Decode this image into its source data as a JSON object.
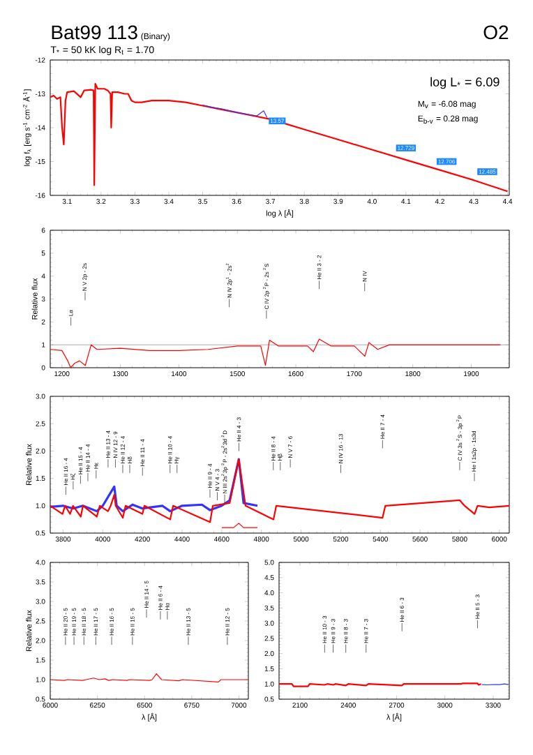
{
  "chart_data": [
    {
      "type": "line",
      "title": "Bat99 113",
      "subtitle": "T$_{*}$ =  50 kK   log R$_{t}$ = 1.70",
      "xlabel": "log λ [Å]",
      "ylabel": "log f$_{λ}$ [erg s$^{-1}$ cm$^{-2}$ Å$^{-1}$]",
      "annotations": [
        "(Binary)",
        "O2",
        "log L$_{*}$ = 6.09",
        "M$_{v}$ = -6.08 mag",
        "E$_{b-v}$ = 0.28 mag",
        {
          "text": "13.57",
          "x": 3.72,
          "y": -13.8
        },
        {
          "text": "12.729",
          "x": 4.1,
          "y": -14.6
        },
        {
          "text": "12.706",
          "x": 4.22,
          "y": -15.0
        },
        {
          "text": "12.485",
          "x": 4.34,
          "y": -15.3
        }
      ],
      "xlim": [
        3.05,
        4.405
      ],
      "ylim": [
        -16,
        -12
      ],
      "xticks": [
        3.1,
        3.2,
        3.3,
        3.4,
        3.5,
        3.6,
        3.7,
        3.8,
        3.9,
        {
          "value": 4,
          "label": "4.0"
        },
        4.1,
        4.2,
        4.3,
        4.4
      ],
      "yticks": [
        -16,
        -15,
        -14,
        -13,
        -12
      ],
      "series": [
        {
          "color": "#ff0000",
          "x": [
            3.05,
            3.06,
            3.07,
            3.08,
            3.085,
            3.09,
            3.095,
            3.1,
            3.12,
            3.14,
            3.15,
            3.17,
            3.178,
            3.18,
            3.183,
            3.19,
            3.21,
            3.22,
            3.228,
            3.23,
            3.233,
            3.25,
            3.27,
            3.28,
            3.29,
            3.3,
            3.32,
            3.35,
            3.4,
            3.45,
            3.5,
            3.55,
            3.6,
            3.65,
            3.7,
            3.75,
            3.8,
            3.85,
            3.9,
            4.0,
            4.1,
            4.2,
            4.3,
            4.4
          ],
          "values": [
            -13.1,
            -13.05,
            -13.15,
            -13.1,
            -14.0,
            -14.5,
            -13.2,
            -12.95,
            -12.92,
            -13.1,
            -12.9,
            -12.88,
            -12.9,
            -15.7,
            -12.7,
            -12.85,
            -12.85,
            -12.9,
            -13.0,
            -14.0,
            -12.95,
            -12.95,
            -13.0,
            -13.0,
            -13.2,
            -13.25,
            -13.25,
            -13.2,
            -13.2,
            -13.25,
            -13.35,
            -13.45,
            -13.55,
            -13.65,
            -13.75,
            -13.9,
            -14.05,
            -14.2,
            -14.35,
            -14.65,
            -14.95,
            -15.25,
            -15.55,
            -15.88
          ]
        },
        {
          "color": "#3333ff",
          "x": [
            3.5,
            3.53,
            3.56,
            3.6,
            3.63,
            3.66,
            3.68,
            3.69
          ],
          "values": [
            -13.33,
            -13.4,
            -13.45,
            -13.55,
            -13.6,
            -13.65,
            -13.5,
            -13.7
          ]
        }
      ]
    },
    {
      "type": "line",
      "ylabel": "Relative flux",
      "xlim": [
        1180,
        1965
      ],
      "ylim": [
        0,
        6
      ],
      "xticks": [
        1200,
        1300,
        1400,
        1500,
        1600,
        1700,
        1800,
        1900
      ],
      "yticks": [
        0,
        1,
        2,
        3,
        4,
        5,
        6
      ],
      "ref_lines": [
        {
          "axis": "y",
          "value": 1,
          "color": "#888888"
        }
      ],
      "annotations": [
        "Lα",
        "N V 2p - 2s",
        "N IV 2p$^{1}$ - 2s$^{2}$",
        "C IV 2p $^{2}$P - 2s $^{2}$S",
        "He II 3 - 2",
        "N IV"
      ],
      "series": [
        {
          "color": "#ff0000",
          "x": [
            1180,
            1200,
            1210,
            1215,
            1222,
            1230,
            1240,
            1250,
            1260,
            1300,
            1350,
            1400,
            1450,
            1500,
            1540,
            1548,
            1555,
            1570,
            1620,
            1630,
            1640,
            1660,
            1700,
            1718,
            1725,
            1740,
            1760,
            1950
          ],
          "values": [
            0.8,
            0.75,
            0.3,
            0.0,
            0.2,
            0.3,
            0.1,
            1.0,
            0.8,
            0.85,
            0.75,
            0.75,
            0.8,
            0.95,
            0.95,
            0.1,
            1.2,
            0.95,
            0.95,
            0.7,
            1.25,
            0.95,
            0.95,
            0.5,
            1.1,
            0.8,
            1.0,
            1.0
          ]
        }
      ]
    },
    {
      "type": "line",
      "ylabel": "Relative flux",
      "xlim": [
        3735,
        6050
      ],
      "ylim": [
        0.5,
        3.0
      ],
      "xticks": [
        3800,
        4000,
        4200,
        4400,
        4600,
        4800,
        5000,
        5200,
        5400,
        5600,
        5800,
        6000
      ],
      "yticks": [
        {
          "value": 0.5,
          "label": "0.5"
        },
        {
          "value": 1,
          "label": "1.0"
        },
        {
          "value": 1.5,
          "label": "1.5"
        },
        {
          "value": 2,
          "label": "2.0"
        },
        {
          "value": 2.5,
          "label": "2.5"
        },
        {
          "value": 3,
          "label": "3.0"
        }
      ],
      "annotations": [
        "He II 16 - 4",
        "Hζ",
        "He II 15 - 4",
        "He II 14 - 4",
        "Hε",
        "He II 13 - 4",
        "N IV 12 - 9",
        "He II 12 - 4",
        "Hδ",
        "He II 11 - 4",
        "He II 10 - 4",
        "Hγ",
        "He II 9 - 4",
        "N V 4 - 3",
        "N III 2s$^{2}$3p $^{2}$P - 2s$^{2}$3d $^{2}$D",
        "He II 4 - 3",
        "He II 8 - 4",
        "Hβ",
        "N V 7 - 6",
        "N IV 16 - 13",
        "He II 7 - 4",
        "C IV 3s $^{2}$S - 3p $^{2}$P",
        "He I 1s2p - 1s3d"
      ],
      "series": [
        {
          "color": "#3333ff",
          "x": [
            3735,
            3800,
            3850,
            3900,
            3970,
            4000,
            4058,
            4070,
            4101,
            4150,
            4200,
            4300,
            4340,
            4400,
            4500,
            4541,
            4600,
            4640,
            4686,
            4710,
            4780
          ],
          "values": [
            0.98,
            1.0,
            0.95,
            1.0,
            0.9,
            1.0,
            1.35,
            1.0,
            0.9,
            1.02,
            0.95,
            1.0,
            0.9,
            1.0,
            1.02,
            0.92,
            1.0,
            1.1,
            1.85,
            1.05,
            1.0
          ]
        },
        {
          "color": "#ff0000",
          "x": [
            3735,
            3797,
            3810,
            3835,
            3850,
            3889,
            3900,
            3970,
            3985,
            4026,
            4040,
            4058,
            4065,
            4101,
            4115,
            4200,
            4210,
            4340,
            4355,
            4541,
            4555,
            4640,
            4686,
            4720,
            4861,
            4875,
            5411,
            5425,
            5801,
            5812,
            5825,
            5875,
            5890,
            5950,
            6050
          ],
          "values": [
            1.0,
            0.85,
            1.0,
            0.85,
            1.0,
            0.8,
            1.0,
            0.8,
            1.0,
            0.9,
            1.0,
            1.2,
            1.0,
            0.78,
            1.0,
            0.85,
            1.0,
            0.75,
            1.0,
            0.7,
            1.0,
            1.05,
            1.85,
            1.0,
            0.75,
            1.0,
            0.78,
            1.0,
            1.1,
            1.05,
            1.0,
            0.85,
            1.0,
            0.97,
            1.0
          ]
        },
        {
          "color": "#ff0000",
          "x": [
            4600,
            4660,
            4686,
            4710,
            4780
          ],
          "values": [
            0.6,
            0.6,
            0.68,
            0.6,
            0.6
          ]
        }
      ]
    },
    {
      "type": "line",
      "ylabel": "Relative flux",
      "xlabel": "λ [Å]",
      "xlim": [
        6000,
        7050
      ],
      "ylim": [
        0.5,
        4.0
      ],
      "xticks": [
        6000,
        6250,
        6500,
        6750,
        7000
      ],
      "yticks": [
        {
          "value": 0.5,
          "label": "0.5"
        },
        {
          "value": 1,
          "label": "1.0"
        },
        {
          "value": 1.5,
          "label": "1.5"
        },
        {
          "value": 2,
          "label": "2.0"
        },
        {
          "value": 2.5,
          "label": "2.5"
        },
        {
          "value": 3,
          "label": "3.0"
        },
        {
          "value": 3.5,
          "label": "3.5"
        },
        {
          "value": 4,
          "label": "4.0"
        }
      ],
      "annotations": [
        "He II 20 - 5",
        "He II 19 - 5",
        "He II 18 - 5",
        "He II 17 - 5",
        "He II 16 - 5",
        "He II 15 - 5",
        "He II 14 - 5",
        "He II 6 - 4",
        "Hα",
        "He II 13 - 5",
        "He II 12 - 5"
      ],
      "series": [
        {
          "color": "#ff0000",
          "x": [
            6000,
            6074,
            6090,
            6171,
            6190,
            6230,
            6260,
            6290,
            6311,
            6330,
            6407,
            6420,
            6527,
            6540,
            6563,
            6590,
            6683,
            6700,
            6891,
            6905,
            7050
          ],
          "values": [
            1.0,
            0.98,
            1.0,
            0.98,
            1.0,
            1.04,
            1.0,
            1.02,
            0.98,
            1.0,
            0.98,
            1.0,
            0.98,
            1.0,
            1.15,
            1.0,
            0.97,
            1.0,
            0.94,
            1.0,
            1.0
          ]
        }
      ]
    },
    {
      "type": "line",
      "xlabel": "λ [Å]",
      "xlim": [
        1970,
        3400
      ],
      "ylim": [
        0.5,
        5.0
      ],
      "xticks": [
        2100,
        2400,
        2700,
        3000,
        3300
      ],
      "yticks": [
        {
          "value": 0.5,
          "label": "0.5"
        },
        {
          "value": 1,
          "label": "1.0"
        },
        {
          "value": 1.5,
          "label": "1.5"
        },
        {
          "value": 2,
          "label": "2.0"
        },
        {
          "value": 2.5,
          "label": "2.5"
        },
        {
          "value": 3,
          "label": "3.0"
        },
        {
          "value": 3.5,
          "label": "3.5"
        },
        {
          "value": 4,
          "label": "4.0"
        },
        {
          "value": 4.5,
          "label": "4.5"
        },
        {
          "value": 5,
          "label": "5.0"
        }
      ],
      "annotations": [
        "He II 10 - 3",
        "He II 9 - 3",
        "He II 8 - 3",
        "He II 7 - 3",
        "He II 6 - 3",
        "He II 5 - 3"
      ],
      "series": [
        {
          "color": "#ff0000",
          "x": [
            1970,
            2050,
            2060,
            2150,
            2160,
            2253,
            2270,
            2306,
            2320,
            2385,
            2400,
            2511,
            2525,
            2733,
            2745,
            3100,
            3110,
            3203,
            3210,
            3225
          ],
          "values": [
            1.0,
            1.0,
            0.92,
            0.92,
            1.0,
            0.97,
            1.0,
            0.97,
            1.0,
            0.95,
            1.0,
            0.95,
            1.0,
            0.95,
            1.0,
            1.0,
            1.02,
            1.02,
            0.97,
            1.0
          ]
        },
        {
          "color": "#3333ff",
          "x": [
            3230,
            3260,
            3300,
            3340,
            3370,
            3395
          ],
          "values": [
            0.98,
            0.97,
            0.98,
            0.98,
            1.0,
            0.98
          ]
        }
      ]
    }
  ]
}
